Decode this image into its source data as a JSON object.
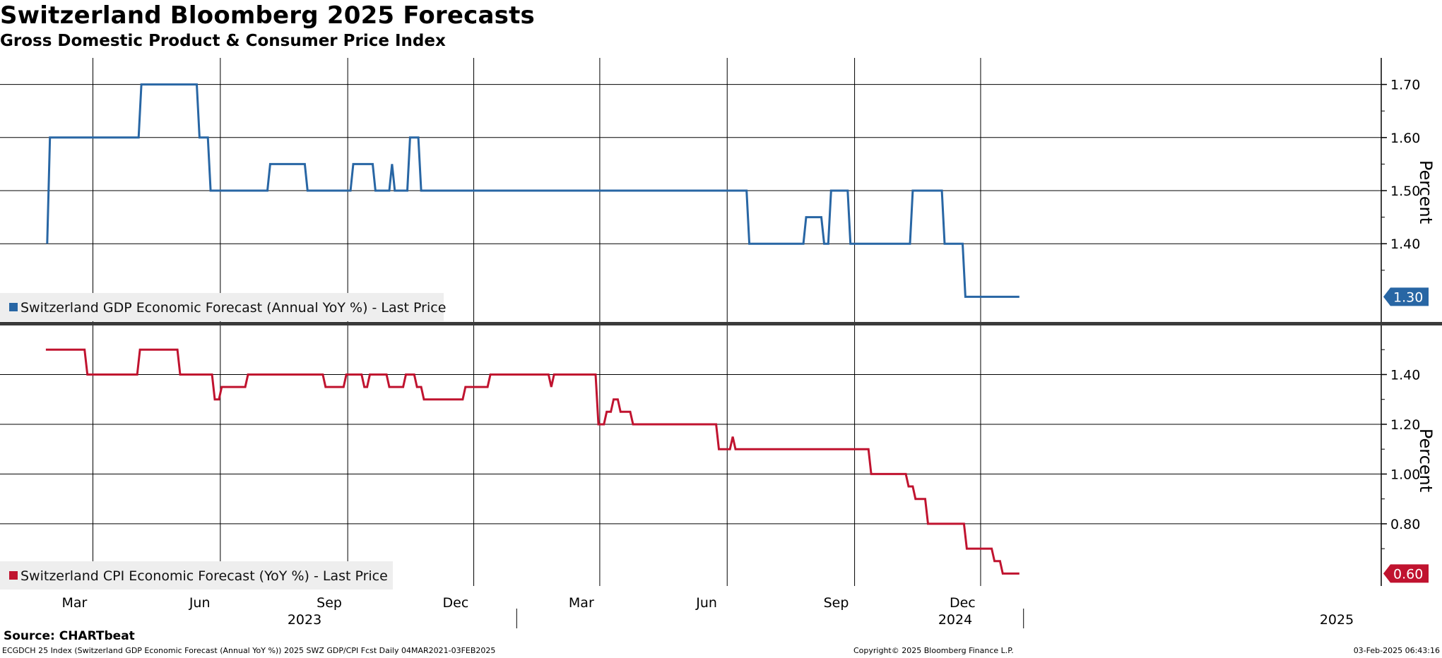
{
  "header": {
    "title": "Switzerland Bloomberg 2025 Forecasts",
    "subtitle": "Gross Domestic Product & Consumer Price Index"
  },
  "footer": {
    "source": "Source: CHARTbeat",
    "description": "ECGDCH 25 Index (Switzerland GDP Economic Forecast (Annual YoY %)) 2025 SWZ GDP/CPI Fcst  Daily 04MAR2021-03FEB2025",
    "copyright": "Copyright© 2025 Bloomberg Finance L.P.",
    "timestamp": "03-Feb-2025 06:43:16"
  },
  "colors": {
    "gdp": "#2866a4",
    "cpi": "#c0132f",
    "grid": "#000000",
    "legend_bg": "#eeeeee",
    "separator": "#3a3a3a"
  },
  "chart_data": [
    {
      "type": "line",
      "ylabel": "Percent",
      "ylim": [
        1.25,
        1.75
      ],
      "yticks": [
        "1.70",
        "1.60",
        "1.50",
        "1.40"
      ],
      "x_axis": {
        "months": [
          "Mar",
          "Jun",
          "Sep",
          "Dec",
          "Mar",
          "Jun",
          "Sep",
          "Dec"
        ],
        "years": [
          "2023",
          "2024",
          "2025"
        ]
      },
      "legend_position": "bottom-left",
      "series": [
        {
          "name": "Switzerland GDP Economic Forecast (Annual YoY %) - Last Price",
          "last_value_label": "1.30",
          "points": [
            [
              "2023-01-27",
              1.4
            ],
            [
              "2023-01-29",
              1.6
            ],
            [
              "2023-04-03",
              1.6
            ],
            [
              "2023-04-05",
              1.7
            ],
            [
              "2023-05-15",
              1.7
            ],
            [
              "2023-05-17",
              1.6
            ],
            [
              "2023-05-23",
              1.6
            ],
            [
              "2023-05-25",
              1.5
            ],
            [
              "2023-07-05",
              1.5
            ],
            [
              "2023-07-07",
              1.55
            ],
            [
              "2023-08-01",
              1.55
            ],
            [
              "2023-08-03",
              1.5
            ],
            [
              "2023-09-03",
              1.5
            ],
            [
              "2023-09-05",
              1.55
            ],
            [
              "2023-09-19",
              1.55
            ],
            [
              "2023-09-21",
              1.5
            ],
            [
              "2023-10-01",
              1.5
            ],
            [
              "2023-10-03",
              1.55
            ],
            [
              "2023-10-05",
              1.5
            ],
            [
              "2023-10-14",
              1.5
            ],
            [
              "2023-10-16",
              1.6
            ],
            [
              "2023-10-22",
              1.6
            ],
            [
              "2023-10-24",
              1.5
            ],
            [
              "2024-06-15",
              1.5
            ],
            [
              "2024-06-17",
              1.4
            ],
            [
              "2024-07-26",
              1.4
            ],
            [
              "2024-07-28",
              1.45
            ],
            [
              "2024-08-08",
              1.45
            ],
            [
              "2024-08-10",
              1.4
            ],
            [
              "2024-08-13",
              1.4
            ],
            [
              "2024-08-15",
              1.5
            ],
            [
              "2024-08-27",
              1.5
            ],
            [
              "2024-08-29",
              1.4
            ],
            [
              "2024-10-11",
              1.4
            ],
            [
              "2024-10-13",
              1.5
            ],
            [
              "2024-11-03",
              1.5
            ],
            [
              "2024-11-05",
              1.4
            ],
            [
              "2024-11-18",
              1.4
            ],
            [
              "2024-11-20",
              1.3
            ],
            [
              "2024-12-29",
              1.3
            ]
          ]
        }
      ]
    },
    {
      "type": "line",
      "ylabel": "Percent",
      "ylim": [
        0.55,
        1.6
      ],
      "yticks": [
        "1.40",
        "1.20",
        "1.00",
        "0.80"
      ],
      "x_axis": {
        "months": [
          "Mar",
          "Jun",
          "Sep",
          "Dec",
          "Mar",
          "Jun",
          "Sep",
          "Dec"
        ],
        "years": [
          "2023",
          "2024",
          "2025"
        ]
      },
      "legend_position": "bottom-left",
      "series": [
        {
          "name": "Switzerland CPI Economic Forecast (YoY %) - Last Price",
          "last_value_label": "0.60",
          "points": [
            [
              "2023-01-26",
              1.5
            ],
            [
              "2023-02-23",
              1.5
            ],
            [
              "2023-02-25",
              1.4
            ],
            [
              "2023-04-02",
              1.4
            ],
            [
              "2023-04-04",
              1.5
            ],
            [
              "2023-05-01",
              1.5
            ],
            [
              "2023-05-03",
              1.4
            ],
            [
              "2023-05-26",
              1.4
            ],
            [
              "2023-05-28",
              1.3
            ],
            [
              "2023-05-31",
              1.3
            ],
            [
              "2023-06-02",
              1.35
            ],
            [
              "2023-06-19",
              1.35
            ],
            [
              "2023-06-21",
              1.4
            ],
            [
              "2023-08-14",
              1.4
            ],
            [
              "2023-08-16",
              1.35
            ],
            [
              "2023-08-29",
              1.35
            ],
            [
              "2023-08-31",
              1.4
            ],
            [
              "2023-09-11",
              1.4
            ],
            [
              "2023-09-13",
              1.35
            ],
            [
              "2023-09-15",
              1.35
            ],
            [
              "2023-09-17",
              1.4
            ],
            [
              "2023-09-29",
              1.4
            ],
            [
              "2023-10-01",
              1.35
            ],
            [
              "2023-10-11",
              1.35
            ],
            [
              "2023-10-13",
              1.4
            ],
            [
              "2023-10-19",
              1.4
            ],
            [
              "2023-10-21",
              1.35
            ],
            [
              "2023-10-24",
              1.35
            ],
            [
              "2023-10-26",
              1.3
            ],
            [
              "2023-11-23",
              1.3
            ],
            [
              "2023-11-25",
              1.35
            ],
            [
              "2023-12-11",
              1.35
            ],
            [
              "2023-12-13",
              1.4
            ],
            [
              "2024-01-24",
              1.4
            ],
            [
              "2024-01-26",
              1.35
            ],
            [
              "2024-01-28",
              1.4
            ],
            [
              "2024-02-27",
              1.4
            ],
            [
              "2024-02-29",
              1.2
            ],
            [
              "2024-03-04",
              1.2
            ],
            [
              "2024-03-06",
              1.25
            ],
            [
              "2024-03-09",
              1.25
            ],
            [
              "2024-03-11",
              1.3
            ],
            [
              "2024-03-14",
              1.3
            ],
            [
              "2024-03-16",
              1.25
            ],
            [
              "2024-03-23",
              1.25
            ],
            [
              "2024-03-25",
              1.2
            ],
            [
              "2024-05-24",
              1.2
            ],
            [
              "2024-05-26",
              1.1
            ],
            [
              "2024-06-03",
              1.1
            ],
            [
              "2024-06-05",
              1.15
            ],
            [
              "2024-06-07",
              1.1
            ],
            [
              "2024-09-11",
              1.1
            ],
            [
              "2024-09-13",
              1.0
            ],
            [
              "2024-10-08",
              1.0
            ],
            [
              "2024-10-10",
              0.95
            ],
            [
              "2024-10-13",
              0.95
            ],
            [
              "2024-10-15",
              0.9
            ],
            [
              "2024-10-22",
              0.9
            ],
            [
              "2024-10-24",
              0.8
            ],
            [
              "2024-11-19",
              0.8
            ],
            [
              "2024-11-21",
              0.7
            ],
            [
              "2024-12-09",
              0.7
            ],
            [
              "2024-12-11",
              0.65
            ],
            [
              "2024-12-15",
              0.65
            ],
            [
              "2024-12-17",
              0.6
            ],
            [
              "2024-12-29",
              0.6
            ]
          ]
        }
      ]
    }
  ]
}
